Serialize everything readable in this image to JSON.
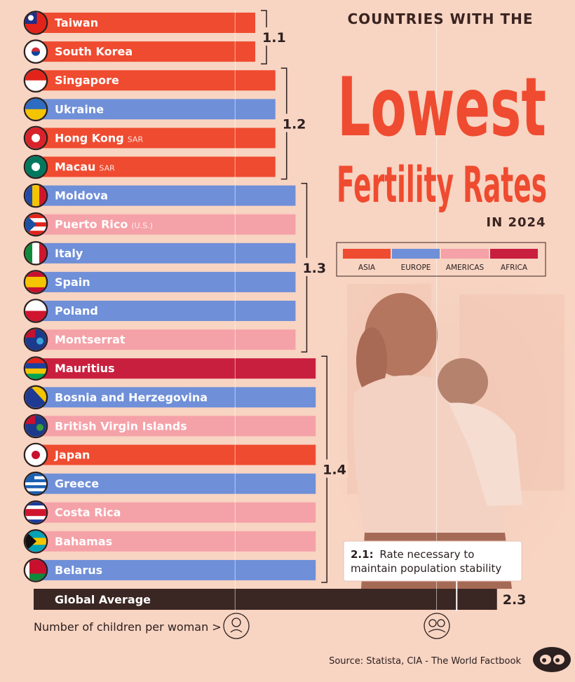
{
  "title": {
    "line1": "COUNTRIES WITH THE",
    "line2": "Lowest",
    "line3": "Fertility Rates",
    "line4": "IN 2024"
  },
  "legend": [
    {
      "label": "ASIA",
      "color": "#ef4b30"
    },
    {
      "label": "EUROPE",
      "color": "#6f8fd8"
    },
    {
      "label": "AMERICAS",
      "color": "#f5a1a8"
    },
    {
      "label": "AFRICA",
      "color": "#c91f3e"
    }
  ],
  "annotation": {
    "value": "2.1:",
    "text_line1": "Rate necessary to",
    "text_line2": "maintain population stability"
  },
  "axis_label": "Number of children per woman >",
  "source": "Source: Statista,  CIA - The World Factbook",
  "chart_data": {
    "type": "bar",
    "orientation": "horizontal",
    "categories": [
      "Taiwan",
      "South Korea",
      "Singapore",
      "Ukraine",
      "Hong Kong",
      "Macau",
      "Moldova",
      "Puerto Rico",
      "Italy",
      "Spain",
      "Poland",
      "Montserrat",
      "Mauritius",
      "Bosnia and Herzegovina",
      "British Virgin Islands",
      "Japan",
      "Greece",
      "Costa Rica",
      "Bahamas",
      "Belarus"
    ],
    "category_suffix": [
      "",
      "",
      "",
      "",
      "SAR",
      "SAR",
      "",
      "(U.S.)",
      "",
      "",
      "",
      "",
      "",
      "",
      "",
      "",
      "",
      "",
      "",
      ""
    ],
    "values": [
      1.1,
      1.1,
      1.2,
      1.2,
      1.2,
      1.2,
      1.3,
      1.3,
      1.3,
      1.3,
      1.3,
      1.3,
      1.4,
      1.4,
      1.4,
      1.4,
      1.4,
      1.4,
      1.4,
      1.4
    ],
    "region": [
      "ASIA",
      "ASIA",
      "ASIA",
      "EUROPE",
      "ASIA",
      "ASIA",
      "EUROPE",
      "AMERICAS",
      "EUROPE",
      "EUROPE",
      "EUROPE",
      "AMERICAS",
      "AFRICA",
      "EUROPE",
      "AMERICAS",
      "ASIA",
      "EUROPE",
      "AMERICAS",
      "AMERICAS",
      "EUROPE"
    ],
    "groups": [
      {
        "label": "1.1",
        "value": 1.1,
        "from": 0,
        "to": 1
      },
      {
        "label": "1.2",
        "value": 1.2,
        "from": 2,
        "to": 5
      },
      {
        "label": "1.3",
        "value": 1.3,
        "from": 6,
        "to": 11
      },
      {
        "label": "1.4",
        "value": 1.4,
        "from": 12,
        "to": 19
      }
    ],
    "global_average": {
      "label": "Global Average",
      "value": 2.3,
      "value_label": "2.3"
    },
    "reference_line": {
      "value": 2.1
    },
    "xlim": [
      0,
      2.3
    ],
    "gridlines": [
      1,
      2
    ],
    "xlabel": "Number of children per woman >",
    "legend_position": "right"
  }
}
